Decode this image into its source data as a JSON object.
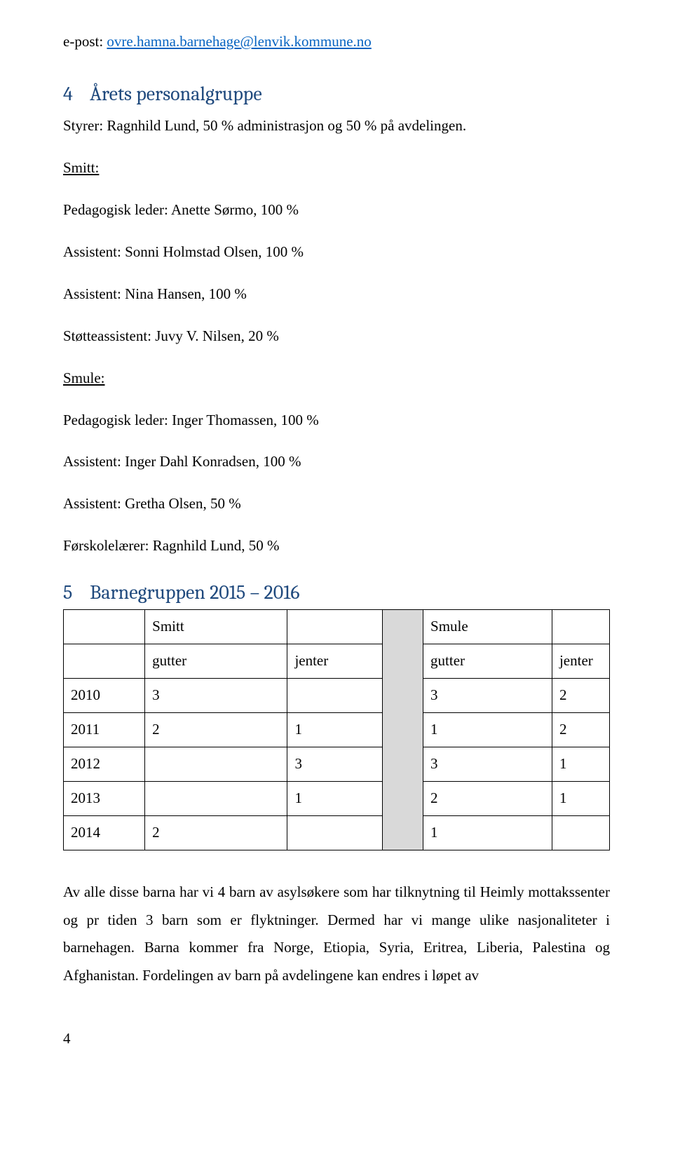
{
  "epost": {
    "label": "e-post: ",
    "link_text": "ovre.hamna.barnehage@lenvik.kommune.no"
  },
  "section4": {
    "number": "4",
    "title": "Årets personalgruppe",
    "styrer": "Styrer: Ragnhild Lund, 50 % administrasjon og 50 % på avdelingen.",
    "smitt_label": "Smitt:",
    "smitt_staff": [
      "Pedagogisk leder: Anette Sørmo, 100 %",
      "Assistent: Sonni Holmstad Olsen, 100 %",
      "Assistent: Nina Hansen, 100 %",
      "Støtteassistent: Juvy V. Nilsen, 20 %"
    ],
    "smule_label": "Smule:",
    "smule_staff": [
      "Pedagogisk leder: Inger Thomassen, 100 %",
      "Assistent: Inger Dahl Konradsen, 100 %",
      "Assistent: Gretha Olsen, 50 %",
      "Førskolelærer: Ragnhild Lund, 50 %"
    ]
  },
  "section5": {
    "number": "5",
    "title": "Barnegruppen 2015 – 2016",
    "table": {
      "group1": "Smitt",
      "group2": "Smule",
      "col_gutter": "gutter",
      "col_jenter": "jenter",
      "rows": [
        {
          "year": "2010",
          "g1": "3",
          "j1": "",
          "g2": "3",
          "j2": "2"
        },
        {
          "year": "2011",
          "g1": "2",
          "j1": "1",
          "g2": "1",
          "j2": "2"
        },
        {
          "year": "2012",
          "g1": "",
          "j1": "3",
          "g2": "3",
          "j2": "1"
        },
        {
          "year": "2013",
          "g1": "",
          "j1": "1",
          "g2": "2",
          "j2": "1"
        },
        {
          "year": "2014",
          "g1": "2",
          "j1": "",
          "g2": "1",
          "j2": ""
        }
      ]
    },
    "trailing_paragraph": "Av alle disse barna har vi 4 barn av asylsøkere som har tilknytning til Heimly mottakssenter og pr tiden 3 barn som er flyktninger. Dermed har vi mange ulike nasjonaliteter i barnehagen. Barna kommer fra Norge, Etiopia, Syria, Eritrea, Liberia, Palestina og Afghanistan. Fordelingen av barn på avdelingene kan endres i løpet av"
  },
  "page_number": "4",
  "colors": {
    "heading": "#1f497d",
    "link": "#0563c1",
    "shaded_cell": "#d9d9d9",
    "text": "#000000",
    "background": "#ffffff",
    "border": "#000000"
  }
}
